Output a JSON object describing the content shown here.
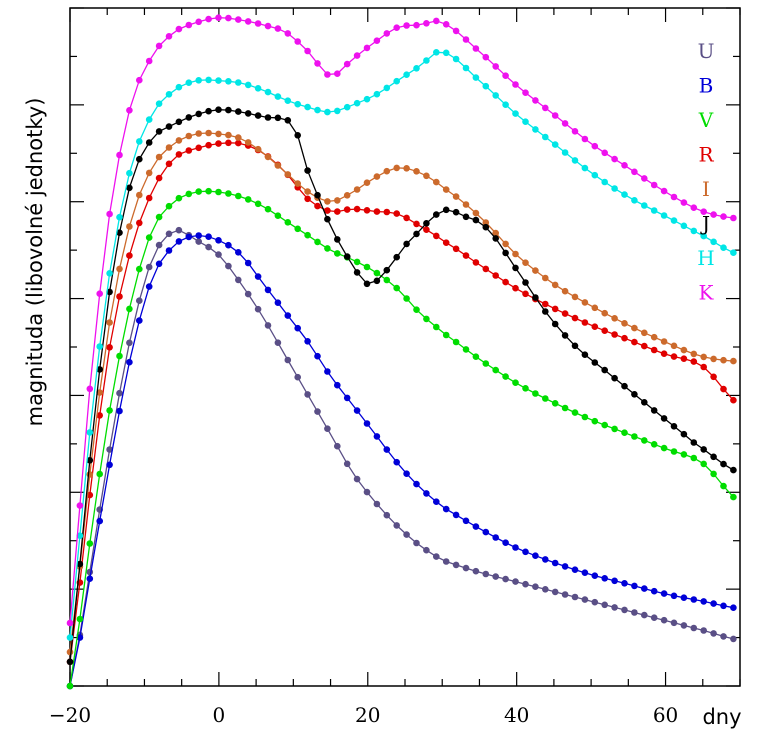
{
  "chart_data": {
    "type": "line",
    "title": "",
    "xlabel": "dny",
    "ylabel": "magnituda (libovolné jednotky)",
    "xlim": [
      -20,
      70
    ],
    "ylim": [
      0,
      14
    ],
    "x_ticks": [
      -20,
      0,
      20,
      40,
      60
    ],
    "x_tick_labels": [
      "−20",
      "0",
      "20",
      "40",
      "60"
    ],
    "y_tick_labels_visible": false,
    "grid": false,
    "legend_position": "top-right",
    "series": [
      {
        "name": "U",
        "color": "#5a4f86",
        "x": [
          -20,
          -18,
          -15,
          -12,
          -9,
          -6,
          -3,
          0,
          3,
          6,
          9,
          12,
          15,
          18,
          21,
          24,
          27,
          30,
          35,
          40,
          45,
          50,
          55,
          60,
          65,
          70
        ],
        "values": [
          0,
          1.8,
          4.6,
          7.1,
          8.8,
          9.4,
          9.2,
          8.9,
          8.3,
          7.6,
          6.8,
          6.0,
          5.2,
          4.4,
          3.8,
          3.3,
          2.9,
          2.6,
          2.35,
          2.15,
          1.95,
          1.75,
          1.55,
          1.35,
          1.15,
          0.95
        ]
      },
      {
        "name": "B",
        "color": "#0000d8",
        "x": [
          -20,
          -18,
          -15,
          -12,
          -9,
          -6,
          -3,
          0,
          3,
          6,
          9,
          12,
          15,
          18,
          21,
          24,
          27,
          30,
          35,
          40,
          45,
          50,
          55,
          60,
          65,
          70
        ],
        "values": [
          0,
          1.7,
          4.3,
          6.7,
          8.4,
          9.1,
          9.3,
          9.2,
          8.9,
          8.3,
          7.7,
          7.1,
          6.4,
          5.8,
          5.2,
          4.6,
          4.1,
          3.7,
          3.25,
          2.85,
          2.55,
          2.3,
          2.1,
          1.9,
          1.75,
          1.6
        ]
      },
      {
        "name": "V",
        "color": "#00dd00",
        "x": [
          -20,
          -18,
          -15,
          -12,
          -9,
          -6,
          -3,
          0,
          3,
          6,
          9,
          12,
          15,
          18,
          21,
          24,
          27,
          30,
          35,
          40,
          45,
          50,
          55,
          60,
          65,
          70
        ],
        "values": [
          0,
          2.3,
          5.4,
          7.8,
          9.4,
          10.0,
          10.2,
          10.2,
          10.1,
          9.9,
          9.6,
          9.3,
          9.0,
          8.8,
          8.55,
          8.2,
          7.7,
          7.3,
          6.75,
          6.25,
          5.85,
          5.5,
          5.2,
          4.9,
          4.6,
          3.8
        ]
      },
      {
        "name": "R",
        "color": "#e00000",
        "x": [
          -20,
          -18,
          -15,
          -12,
          -9,
          -6,
          -3,
          0,
          3,
          6,
          9,
          12,
          15,
          18,
          21,
          24,
          27,
          30,
          35,
          40,
          45,
          50,
          55,
          60,
          65,
          70
        ],
        "values": [
          0.5,
          3.2,
          6.7,
          8.9,
          10.2,
          10.9,
          11.1,
          11.2,
          11.2,
          11.0,
          10.6,
          10.05,
          9.8,
          9.85,
          9.8,
          9.75,
          9.5,
          9.2,
          8.7,
          8.2,
          7.8,
          7.45,
          7.15,
          6.85,
          6.6,
          5.8
        ]
      },
      {
        "name": "I",
        "color": "#cc6a2c",
        "x": [
          -20,
          -18,
          -15,
          -12,
          -9,
          -6,
          -3,
          0,
          3,
          6,
          9,
          12,
          15,
          18,
          21,
          24,
          27,
          30,
          35,
          40,
          45,
          50,
          55,
          60,
          65,
          70
        ],
        "values": [
          0.7,
          3.6,
          7.2,
          9.5,
          10.7,
          11.2,
          11.4,
          11.4,
          11.3,
          11.0,
          10.6,
          10.2,
          10.0,
          10.2,
          10.5,
          10.7,
          10.6,
          10.3,
          9.7,
          8.9,
          8.3,
          7.85,
          7.45,
          7.1,
          6.8,
          6.7
        ]
      },
      {
        "name": "J",
        "color": "#000000",
        "x": [
          -20,
          -18,
          -15,
          -12,
          -9,
          -6,
          -3,
          0,
          3,
          6,
          10,
          12,
          15,
          18,
          20,
          22,
          25,
          30,
          33,
          36,
          40,
          44,
          48,
          52,
          56,
          60,
          64,
          70
        ],
        "values": [
          0.5,
          3.8,
          7.8,
          10.3,
          11.3,
          11.6,
          11.8,
          11.9,
          11.85,
          11.75,
          11.6,
          10.6,
          9.5,
          8.7,
          8.3,
          8.5,
          9.1,
          9.8,
          9.7,
          9.45,
          8.6,
          7.7,
          7.0,
          6.5,
          6.0,
          5.5,
          5.0,
          4.4
        ]
      },
      {
        "name": "H",
        "color": "#00e6e6",
        "x": [
          -20,
          -18,
          -15,
          -12,
          -9,
          -6,
          -3,
          0,
          3,
          6,
          9,
          12,
          15,
          18,
          21,
          24,
          27,
          30,
          35,
          40,
          45,
          50,
          55,
          60,
          65,
          70
        ],
        "values": [
          1,
          4.4,
          8.2,
          10.6,
          11.8,
          12.3,
          12.5,
          12.5,
          12.45,
          12.3,
          12.1,
          11.95,
          11.85,
          12.0,
          12.2,
          12.5,
          12.8,
          13.1,
          12.5,
          11.8,
          11.2,
          10.6,
          10.1,
          9.7,
          9.3,
          8.9
        ]
      },
      {
        "name": "K",
        "color": "#ee11ee",
        "x": [
          -20,
          -18,
          -15,
          -12,
          -9,
          -6,
          -3,
          0,
          3,
          6,
          9,
          12,
          15,
          18,
          21,
          24,
          27,
          30,
          35,
          40,
          45,
          50,
          55,
          60,
          65,
          70
        ],
        "values": [
          1.3,
          5.2,
          9.4,
          11.9,
          13.0,
          13.5,
          13.7,
          13.8,
          13.75,
          13.65,
          13.5,
          13.1,
          12.6,
          12.95,
          13.3,
          13.6,
          13.65,
          13.7,
          13.1,
          12.4,
          11.8,
          11.2,
          10.7,
          10.2,
          9.8,
          9.65
        ]
      }
    ]
  }
}
